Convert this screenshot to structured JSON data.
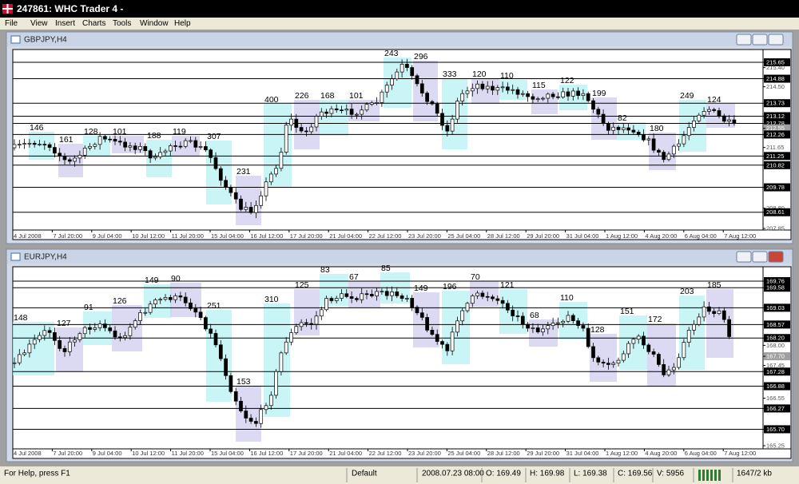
{
  "app": {
    "title": "247861: WHC Trader 4 -",
    "menu": [
      "File",
      "View",
      "Insert",
      "Charts",
      "Tools",
      "Window",
      "Help"
    ]
  },
  "windows": [
    {
      "title": "GBPJPY,H4",
      "price_labels": [
        {
          "label": "215.65",
          "kind": "level"
        },
        {
          "label": "215.40",
          "kind": "plain"
        },
        {
          "label": "214.88",
          "kind": "level"
        },
        {
          "label": "214.50",
          "kind": "plain"
        },
        {
          "label": "213.73",
          "kind": "level"
        },
        {
          "label": "213.12",
          "kind": "level"
        },
        {
          "label": "212.78",
          "kind": "level"
        },
        {
          "label": "212.55",
          "kind": "current"
        },
        {
          "label": "212.26",
          "kind": "level"
        },
        {
          "label": "211.65",
          "kind": "plain"
        },
        {
          "label": "211.25",
          "kind": "level"
        },
        {
          "label": "210.82",
          "kind": "level"
        },
        {
          "label": "209.78",
          "kind": "level"
        },
        {
          "label": "208.80",
          "kind": "plain"
        },
        {
          "label": "208.61",
          "kind": "level"
        },
        {
          "label": "207.85",
          "kind": "plain"
        }
      ],
      "time_labels": [
        "4 Jul 2008",
        "7 Jul 20:00",
        "9 Jul 04:00",
        "10 Jul 12:00",
        "11 Jul 20:00",
        "15 Jul 04:00",
        "16 Jul 12:00",
        "17 Jul 20:00",
        "21 Jul 04:00",
        "22 Jul 12:00",
        "23 Jul 20:00",
        "25 Jul 04:00",
        "28 Jul 12:00",
        "29 Jul 20:00",
        "31 Jul 04:00",
        "1 Aug 12:00",
        "4 Aug 20:00",
        "6 Aug 04:00",
        "7 Aug 12:00"
      ],
      "zones": [
        "146",
        "161",
        "128",
        "101",
        "188",
        "119",
        "307",
        "231",
        "400",
        "226",
        "168",
        "101",
        "243",
        "296",
        "333",
        "120",
        "110",
        "115",
        "122",
        "199",
        "82",
        "180",
        "249",
        "124"
      ]
    },
    {
      "title": "EURJPY,H4",
      "price_labels": [
        {
          "label": "169.76",
          "kind": "level"
        },
        {
          "label": "169.58",
          "kind": "level"
        },
        {
          "label": "169.03",
          "kind": "level"
        },
        {
          "label": "168.57",
          "kind": "level"
        },
        {
          "label": "168.20",
          "kind": "level"
        },
        {
          "label": "168.00",
          "kind": "plain"
        },
        {
          "label": "167.70",
          "kind": "current"
        },
        {
          "label": "167.45",
          "kind": "plain"
        },
        {
          "label": "167.28",
          "kind": "level"
        },
        {
          "label": "166.88",
          "kind": "level"
        },
        {
          "label": "166.55",
          "kind": "plain"
        },
        {
          "label": "166.27",
          "kind": "level"
        },
        {
          "label": "165.70",
          "kind": "level"
        },
        {
          "label": "165.25",
          "kind": "plain"
        }
      ],
      "time_labels": [
        "4 Jul 2008",
        "7 Jul 20:00",
        "9 Jul 04:00",
        "10 Jul 12:00",
        "11 Jul 20:00",
        "15 Jul 04:00",
        "16 Jul 12:00",
        "17 Jul 20:00",
        "21 Jul 04:00",
        "22 Jul 12:00",
        "23 Jul 20:00",
        "25 Jul 04:00",
        "28 Jul 12:00",
        "29 Jul 20:00",
        "31 Jul 04:00",
        "1 Aug 12:00",
        "4 Aug 20:00",
        "6 Aug 04:00",
        "7 Aug 12:00"
      ],
      "zones": [
        "148",
        "127",
        "91",
        "126",
        "149",
        "90",
        "251",
        "153",
        "310",
        "125",
        "83",
        "67",
        "85",
        "149",
        "196",
        "70",
        "121",
        "68",
        "110",
        "128",
        "151",
        "172",
        "203",
        "185"
      ]
    }
  ],
  "status_bar": {
    "help": "For Help, press F1",
    "profile": "Default",
    "time": "2008.07.23 08:00",
    "open": "O: 169.49",
    "high": "H: 169.98",
    "low": "L: 169.38",
    "close": "C: 169.56",
    "volume": "V: 5956",
    "traffic": "1647/2 kb"
  }
}
